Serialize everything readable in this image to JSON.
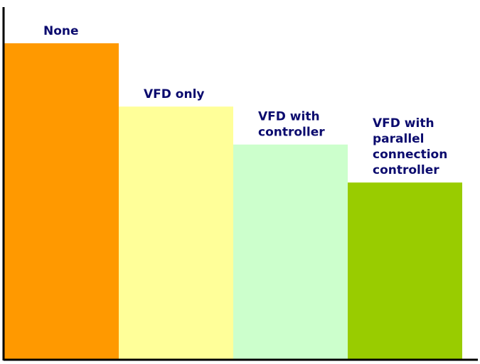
{
  "chart_data": {
    "type": "bar",
    "categories": [
      [
        "None"
      ],
      [
        "VFD only"
      ],
      [
        "VFD with",
        "controller"
      ],
      [
        "VFD with",
        "parallel",
        "connection",
        "controller"
      ]
    ],
    "values": [
      100,
      80,
      68,
      56
    ],
    "colors": [
      "#ff9900",
      "#ffff99",
      "#ccffcc",
      "#99cc00"
    ],
    "axis_color": "#000000",
    "label_color": "#0b0b6e",
    "title": "",
    "xlabel": "",
    "ylabel": "",
    "ylim": [
      0,
      100
    ],
    "grid": false,
    "legend": "none"
  }
}
